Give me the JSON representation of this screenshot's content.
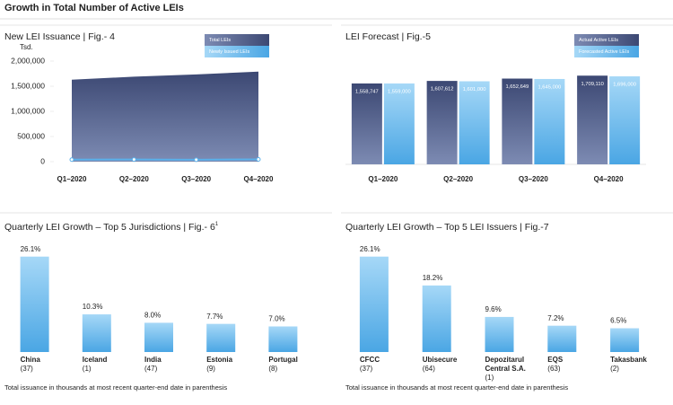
{
  "title": "Growth in Total Number of Active LEIs",
  "chart_data": [
    {
      "type": "area",
      "title": "New LEI Issuance | Fig.- 4",
      "ylabel": "Tsd.",
      "categories": [
        "Q1–2020",
        "Q2–2020",
        "Q3–2020",
        "Q4–2020"
      ],
      "series": [
        {
          "name": "Total LEIs",
          "color": "#4a5885",
          "values": [
            1630000,
            1690000,
            1735000,
            1790000
          ]
        },
        {
          "name": "Newly Issued LEIs",
          "color": "#5ab0ea",
          "values": [
            40000,
            42000,
            38000,
            45000
          ]
        }
      ],
      "ylim": [
        0,
        2000000
      ],
      "yticks": [
        0,
        {
          "value": 500000,
          "label": "500,000"
        },
        {
          "value": 1000000,
          "label": "1,000,000"
        },
        {
          "value": 1500000,
          "label": "1,500,000"
        },
        {
          "value": 2000000,
          "label": "2,000,000"
        }
      ],
      "legend": "upper right"
    },
    {
      "type": "bar",
      "title": "LEI Forecast | Fig.-5",
      "categories": [
        "Q1–2020",
        "Q2–2020",
        "Q3–2020",
        "Q4–2020"
      ],
      "series": [
        {
          "name": "Actual Active LEIs",
          "color": "#4a5885",
          "values": [
            1558747,
            1607612,
            1652649,
            1709110
          ],
          "value_labels": [
            "1,558,747",
            "1,607,612",
            "1,652,649",
            "1,709,110"
          ]
        },
        {
          "name": "Forecasted Active LEIs",
          "color": "#5ab0ea",
          "values": [
            1559000,
            1601000,
            1645000,
            1696000
          ],
          "value_labels": [
            "1,559,000",
            "1,601,000",
            "1,645,000",
            "1,696,000"
          ]
        }
      ],
      "ylim": [
        0,
        1800000
      ],
      "legend": "upper right"
    },
    {
      "type": "bar",
      "title": "Quarterly LEI Growth – Top 5 Jurisdictions | Fig.- 6",
      "title_superscript": "1",
      "categories": [
        "China",
        "Iceland",
        "India",
        "Estonia",
        "Portugal"
      ],
      "sublabels": [
        "(37)",
        "(1)",
        "(47)",
        "(9)",
        "(8)"
      ],
      "values": [
        26.1,
        10.3,
        8.0,
        7.7,
        7.0
      ],
      "value_labels": [
        "26.1%",
        "10.3%",
        "8.0%",
        "7.7%",
        "7.0%"
      ],
      "color": "#5ab0ea",
      "ylim": [
        0,
        28
      ],
      "note": "Total issuance in thousands at most recent quarter-end date in parenthesis"
    },
    {
      "type": "bar",
      "title": "Quarterly LEI Growth – Top 5 LEI Issuers | Fig.-7",
      "categories": [
        "CFCC",
        "Ubisecure",
        "Depozitarul Central S.A.",
        "EQS",
        "Takasbank"
      ],
      "sublabels": [
        "(37)",
        "(64)",
        "(1)",
        "(63)",
        "(2)"
      ],
      "values": [
        26.1,
        18.2,
        9.6,
        7.2,
        6.5
      ],
      "value_labels": [
        "26.1%",
        "18.2%",
        "9.6%",
        "7.2%",
        "6.5%"
      ],
      "color": "#5ab0ea",
      "ylim": [
        0,
        28
      ],
      "note": "Total issuance in thousands at most recent quarter-end date in parenthesis"
    }
  ]
}
